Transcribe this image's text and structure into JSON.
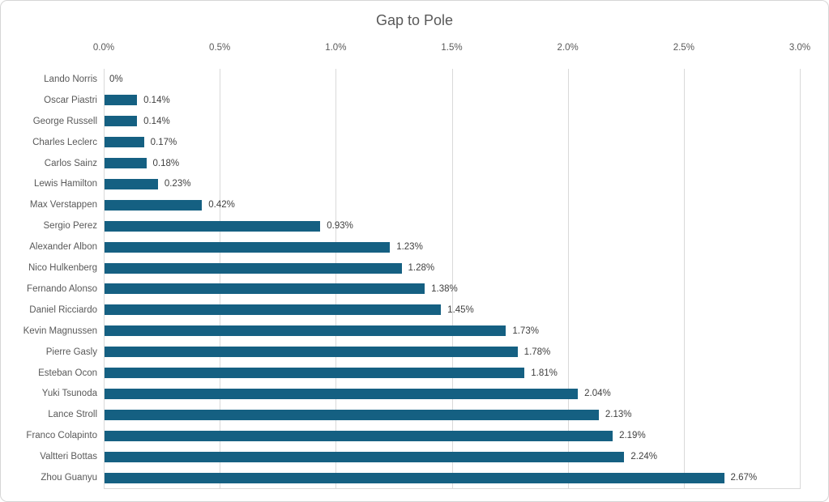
{
  "chart_data": {
    "type": "bar",
    "orientation": "horizontal",
    "title": "Gap to Pole",
    "categories": [
      "Lando Norris",
      "Oscar Piastri",
      "George Russell",
      "Charles Leclerc",
      "Carlos Sainz",
      "Lewis Hamilton",
      "Max Verstappen",
      "Sergio Perez",
      "Alexander Albon",
      "Nico Hulkenberg",
      "Fernando Alonso",
      "Daniel Ricciardo",
      "Kevin Magnussen",
      "Pierre Gasly",
      "Esteban Ocon",
      "Yuki Tsunoda",
      "Lance Stroll",
      "Franco Colapinto",
      "Valtteri Bottas",
      "Zhou Guanyu"
    ],
    "values": [
      0,
      0.14,
      0.14,
      0.17,
      0.18,
      0.23,
      0.42,
      0.93,
      1.23,
      1.28,
      1.38,
      1.45,
      1.73,
      1.78,
      1.81,
      2.04,
      2.13,
      2.19,
      2.24,
      2.67
    ],
    "labels": [
      "0%",
      "0.14%",
      "0.14%",
      "0.17%",
      "0.18%",
      "0.23%",
      "0.42%",
      "0.93%",
      "1.23%",
      "1.28%",
      "1.38%",
      "1.45%",
      "1.73%",
      "1.78%",
      "1.81%",
      "2.04%",
      "2.13%",
      "2.19%",
      "2.24%",
      "2.67%"
    ],
    "x_ticks": [
      "0.0%",
      "0.5%",
      "1.0%",
      "1.5%",
      "2.0%",
      "2.5%",
      "3.0%"
    ],
    "xlim": [
      0,
      3
    ],
    "xlabel": "",
    "ylabel": "",
    "legend": "none",
    "grid": "vertical",
    "bar_color": "#156082",
    "gridline_color": "#d9d9d9",
    "axis_line_color": "#d9d9d9",
    "axis_text_color": "#595959",
    "value_label_color": "#404040",
    "title_color": "#595959",
    "background_color": "#ffffff",
    "border_color": "#d6d6d6"
  }
}
